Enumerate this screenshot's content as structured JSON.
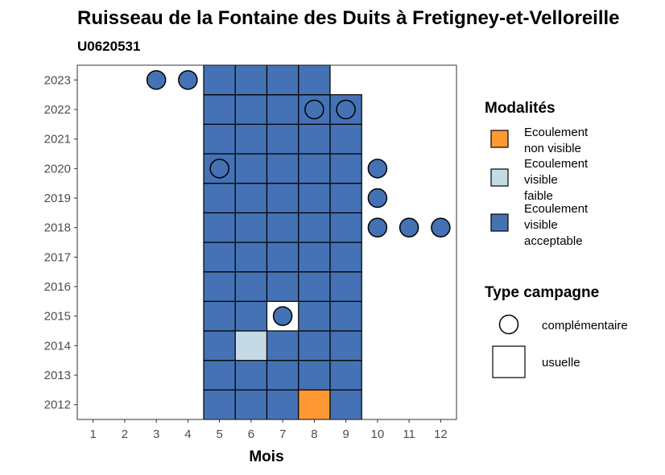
{
  "chart_data": {
    "type": "heatmap",
    "title": "Ruisseau de la Fontaine des Duits à Fretigney-et-Velloreille",
    "subtitle": "U0620531",
    "xlabel": "Mois",
    "ylabel": "",
    "x_ticks": [
      "1",
      "2",
      "3",
      "4",
      "5",
      "6",
      "7",
      "8",
      "9",
      "10",
      "11",
      "12"
    ],
    "y_ticks": [
      "2012",
      "2013",
      "2014",
      "2015",
      "2016",
      "2017",
      "2018",
      "2019",
      "2020",
      "2021",
      "2022",
      "2023"
    ],
    "xlim": [
      0.5,
      12.5
    ],
    "ylim": [
      2011.5,
      2023.5
    ],
    "grid": false,
    "colors": {
      "Ecoulement non visible": "#FF9933",
      "Ecoulement visible faible": "#C6DAE6",
      "Ecoulement visible acceptable": "#4472B4"
    },
    "legend_modalites": {
      "title": "Modalités",
      "placement": "right",
      "items": [
        {
          "key": "Ecoulement non visible",
          "lines": [
            "Ecoulement",
            "non visible"
          ],
          "color": "#FF9933"
        },
        {
          "key": "Ecoulement visible faible",
          "lines": [
            "Ecoulement",
            "visible",
            "faible"
          ],
          "color": "#C6DAE6"
        },
        {
          "key": "Ecoulement visible acceptable",
          "lines": [
            "Ecoulement",
            "visible",
            "acceptable"
          ],
          "color": "#4472B4"
        }
      ]
    },
    "legend_type": {
      "title": "Type campagne",
      "placement": "right",
      "items": [
        {
          "label": "complémentaire",
          "shape": "circle"
        },
        {
          "label": "usuelle",
          "shape": "square"
        }
      ]
    },
    "points": [
      {
        "year": 2012,
        "month": 5,
        "modalite": "Ecoulement visible acceptable",
        "type": "usuelle"
      },
      {
        "year": 2012,
        "month": 6,
        "modalite": "Ecoulement visible acceptable",
        "type": "usuelle"
      },
      {
        "year": 2012,
        "month": 7,
        "modalite": "Ecoulement visible acceptable",
        "type": "usuelle"
      },
      {
        "year": 2012,
        "month": 8,
        "modalite": "Ecoulement non visible",
        "type": "usuelle"
      },
      {
        "year": 2012,
        "month": 9,
        "modalite": "Ecoulement visible acceptable",
        "type": "usuelle"
      },
      {
        "year": 2013,
        "month": 5,
        "modalite": "Ecoulement visible acceptable",
        "type": "usuelle"
      },
      {
        "year": 2013,
        "month": 6,
        "modalite": "Ecoulement visible acceptable",
        "type": "usuelle"
      },
      {
        "year": 2013,
        "month": 7,
        "modalite": "Ecoulement visible acceptable",
        "type": "usuelle"
      },
      {
        "year": 2013,
        "month": 8,
        "modalite": "Ecoulement visible acceptable",
        "type": "usuelle"
      },
      {
        "year": 2013,
        "month": 9,
        "modalite": "Ecoulement visible acceptable",
        "type": "usuelle"
      },
      {
        "year": 2014,
        "month": 5,
        "modalite": "Ecoulement visible acceptable",
        "type": "usuelle"
      },
      {
        "year": 2014,
        "month": 6,
        "modalite": "Ecoulement visible faible",
        "type": "usuelle"
      },
      {
        "year": 2014,
        "month": 7,
        "modalite": "Ecoulement visible acceptable",
        "type": "usuelle"
      },
      {
        "year": 2014,
        "month": 8,
        "modalite": "Ecoulement visible acceptable",
        "type": "usuelle"
      },
      {
        "year": 2014,
        "month": 9,
        "modalite": "Ecoulement visible acceptable",
        "type": "usuelle"
      },
      {
        "year": 2015,
        "month": 5,
        "modalite": "Ecoulement visible acceptable",
        "type": "usuelle"
      },
      {
        "year": 2015,
        "month": 6,
        "modalite": "Ecoulement visible acceptable",
        "type": "usuelle"
      },
      {
        "year": 2015,
        "month": 7,
        "modalite": "Ecoulement visible acceptable",
        "type": "complémentaire"
      },
      {
        "year": 2015,
        "month": 8,
        "modalite": "Ecoulement visible acceptable",
        "type": "usuelle"
      },
      {
        "year": 2015,
        "month": 9,
        "modalite": "Ecoulement visible acceptable",
        "type": "usuelle"
      },
      {
        "year": 2016,
        "month": 5,
        "modalite": "Ecoulement visible acceptable",
        "type": "usuelle"
      },
      {
        "year": 2016,
        "month": 6,
        "modalite": "Ecoulement visible acceptable",
        "type": "usuelle"
      },
      {
        "year": 2016,
        "month": 7,
        "modalite": "Ecoulement visible acceptable",
        "type": "usuelle"
      },
      {
        "year": 2016,
        "month": 8,
        "modalite": "Ecoulement visible acceptable",
        "type": "usuelle"
      },
      {
        "year": 2016,
        "month": 9,
        "modalite": "Ecoulement visible acceptable",
        "type": "usuelle"
      },
      {
        "year": 2017,
        "month": 5,
        "modalite": "Ecoulement visible acceptable",
        "type": "usuelle"
      },
      {
        "year": 2017,
        "month": 6,
        "modalite": "Ecoulement visible acceptable",
        "type": "usuelle"
      },
      {
        "year": 2017,
        "month": 7,
        "modalite": "Ecoulement visible acceptable",
        "type": "usuelle"
      },
      {
        "year": 2017,
        "month": 8,
        "modalite": "Ecoulement visible acceptable",
        "type": "usuelle"
      },
      {
        "year": 2017,
        "month": 9,
        "modalite": "Ecoulement visible acceptable",
        "type": "usuelle"
      },
      {
        "year": 2018,
        "month": 5,
        "modalite": "Ecoulement visible acceptable",
        "type": "usuelle"
      },
      {
        "year": 2018,
        "month": 6,
        "modalite": "Ecoulement visible acceptable",
        "type": "usuelle"
      },
      {
        "year": 2018,
        "month": 7,
        "modalite": "Ecoulement visible acceptable",
        "type": "usuelle"
      },
      {
        "year": 2018,
        "month": 8,
        "modalite": "Ecoulement visible acceptable",
        "type": "usuelle"
      },
      {
        "year": 2018,
        "month": 9,
        "modalite": "Ecoulement visible acceptable",
        "type": "usuelle"
      },
      {
        "year": 2018,
        "month": 10,
        "modalite": "Ecoulement visible acceptable",
        "type": "complémentaire"
      },
      {
        "year": 2018,
        "month": 11,
        "modalite": "Ecoulement visible acceptable",
        "type": "complémentaire"
      },
      {
        "year": 2018,
        "month": 12,
        "modalite": "Ecoulement visible acceptable",
        "type": "complémentaire"
      },
      {
        "year": 2019,
        "month": 5,
        "modalite": "Ecoulement visible acceptable",
        "type": "usuelle"
      },
      {
        "year": 2019,
        "month": 6,
        "modalite": "Ecoulement visible acceptable",
        "type": "usuelle"
      },
      {
        "year": 2019,
        "month": 7,
        "modalite": "Ecoulement visible acceptable",
        "type": "usuelle"
      },
      {
        "year": 2019,
        "month": 8,
        "modalite": "Ecoulement visible acceptable",
        "type": "usuelle"
      },
      {
        "year": 2019,
        "month": 9,
        "modalite": "Ecoulement visible acceptable",
        "type": "usuelle"
      },
      {
        "year": 2019,
        "month": 10,
        "modalite": "Ecoulement visible acceptable",
        "type": "complémentaire"
      },
      {
        "year": 2020,
        "month": 5,
        "modalite": "Ecoulement visible acceptable",
        "type": "usuelle"
      },
      {
        "year": 2020,
        "month": 5,
        "modalite": "Ecoulement visible acceptable",
        "type": "complémentaire"
      },
      {
        "year": 2020,
        "month": 6,
        "modalite": "Ecoulement visible acceptable",
        "type": "usuelle"
      },
      {
        "year": 2020,
        "month": 7,
        "modalite": "Ecoulement visible acceptable",
        "type": "usuelle"
      },
      {
        "year": 2020,
        "month": 8,
        "modalite": "Ecoulement visible acceptable",
        "type": "usuelle"
      },
      {
        "year": 2020,
        "month": 9,
        "modalite": "Ecoulement visible acceptable",
        "type": "usuelle"
      },
      {
        "year": 2020,
        "month": 10,
        "modalite": "Ecoulement visible acceptable",
        "type": "complémentaire"
      },
      {
        "year": 2021,
        "month": 5,
        "modalite": "Ecoulement visible acceptable",
        "type": "usuelle"
      },
      {
        "year": 2021,
        "month": 6,
        "modalite": "Ecoulement visible acceptable",
        "type": "usuelle"
      },
      {
        "year": 2021,
        "month": 7,
        "modalite": "Ecoulement visible acceptable",
        "type": "usuelle"
      },
      {
        "year": 2021,
        "month": 8,
        "modalite": "Ecoulement visible acceptable",
        "type": "usuelle"
      },
      {
        "year": 2021,
        "month": 9,
        "modalite": "Ecoulement visible acceptable",
        "type": "usuelle"
      },
      {
        "year": 2022,
        "month": 5,
        "modalite": "Ecoulement visible acceptable",
        "type": "usuelle"
      },
      {
        "year": 2022,
        "month": 6,
        "modalite": "Ecoulement visible acceptable",
        "type": "usuelle"
      },
      {
        "year": 2022,
        "month": 7,
        "modalite": "Ecoulement visible acceptable",
        "type": "usuelle"
      },
      {
        "year": 2022,
        "month": 8,
        "modalite": "Ecoulement visible acceptable",
        "type": "usuelle"
      },
      {
        "year": 2022,
        "month": 8,
        "modalite": "Ecoulement visible acceptable",
        "type": "complémentaire"
      },
      {
        "year": 2022,
        "month": 9,
        "modalite": "Ecoulement visible acceptable",
        "type": "usuelle"
      },
      {
        "year": 2022,
        "month": 9,
        "modalite": "Ecoulement visible acceptable",
        "type": "complémentaire"
      },
      {
        "year": 2023,
        "month": 3,
        "modalite": "Ecoulement visible acceptable",
        "type": "complémentaire"
      },
      {
        "year": 2023,
        "month": 4,
        "modalite": "Ecoulement visible acceptable",
        "type": "complémentaire"
      },
      {
        "year": 2023,
        "month": 5,
        "modalite": "Ecoulement visible acceptable",
        "type": "usuelle"
      },
      {
        "year": 2023,
        "month": 6,
        "modalite": "Ecoulement visible acceptable",
        "type": "usuelle"
      },
      {
        "year": 2023,
        "month": 7,
        "modalite": "Ecoulement visible acceptable",
        "type": "usuelle"
      },
      {
        "year": 2023,
        "month": 8,
        "modalite": "Ecoulement visible acceptable",
        "type": "usuelle"
      }
    ]
  }
}
